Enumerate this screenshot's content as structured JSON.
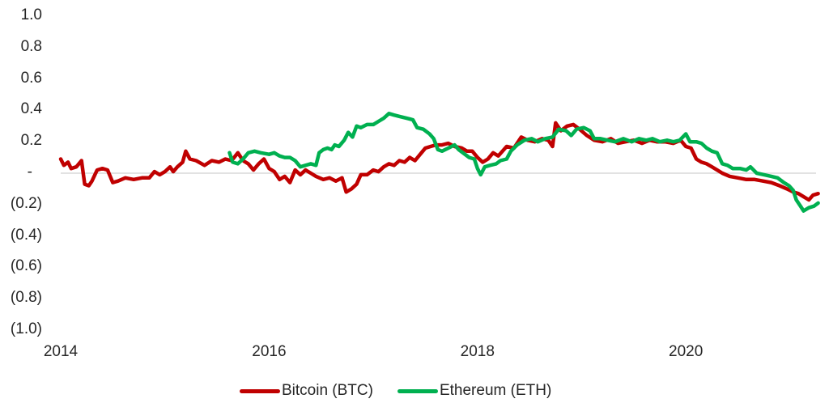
{
  "chart_data": {
    "type": "line",
    "title": "",
    "xlabel": "",
    "ylabel": "",
    "ylim": [
      -1.0,
      1.0
    ],
    "xlim": [
      2014,
      2021.3
    ],
    "grid": false,
    "zero_line": true,
    "legend_position": "bottom",
    "y_ticks": [
      {
        "value": 1.0,
        "label": "1.0"
      },
      {
        "value": 0.8,
        "label": "0.8"
      },
      {
        "value": 0.6,
        "label": "0.6"
      },
      {
        "value": 0.4,
        "label": "0.4"
      },
      {
        "value": 0.2,
        "label": "0.2"
      },
      {
        "value": 0.0,
        "label": "-"
      },
      {
        "value": -0.2,
        "label": "(0.2)"
      },
      {
        "value": -0.4,
        "label": "(0.4)"
      },
      {
        "value": -0.6,
        "label": "(0.6)"
      },
      {
        "value": -0.8,
        "label": "(0.8)"
      },
      {
        "value": -1.0,
        "label": "(1.0)"
      }
    ],
    "x_ticks": [
      {
        "value": 2014,
        "label": "2014"
      },
      {
        "value": 2016,
        "label": "2016"
      },
      {
        "value": 2018,
        "label": "2018"
      },
      {
        "value": 2020,
        "label": "2020"
      }
    ],
    "series": [
      {
        "name": "Bitcoin (BTC)",
        "color": "#c00000",
        "points": [
          [
            2014.0,
            0.09
          ],
          [
            2014.03,
            0.05
          ],
          [
            2014.07,
            0.07
          ],
          [
            2014.1,
            0.03
          ],
          [
            2014.15,
            0.04
          ],
          [
            2014.2,
            0.08
          ],
          [
            2014.23,
            -0.07
          ],
          [
            2014.27,
            -0.08
          ],
          [
            2014.3,
            -0.05
          ],
          [
            2014.35,
            0.02
          ],
          [
            2014.4,
            0.03
          ],
          [
            2014.45,
            0.02
          ],
          [
            2014.5,
            -0.06
          ],
          [
            2014.55,
            -0.05
          ],
          [
            2014.62,
            -0.03
          ],
          [
            2014.7,
            -0.04
          ],
          [
            2014.78,
            -0.03
          ],
          [
            2014.85,
            -0.03
          ],
          [
            2014.9,
            0.01
          ],
          [
            2014.95,
            -0.01
          ],
          [
            2015.0,
            0.01
          ],
          [
            2015.05,
            0.04
          ],
          [
            2015.08,
            0.01
          ],
          [
            2015.12,
            0.04
          ],
          [
            2015.17,
            0.07
          ],
          [
            2015.2,
            0.14
          ],
          [
            2015.24,
            0.09
          ],
          [
            2015.3,
            0.08
          ],
          [
            2015.38,
            0.05
          ],
          [
            2015.45,
            0.08
          ],
          [
            2015.52,
            0.07
          ],
          [
            2015.58,
            0.09
          ],
          [
            2015.64,
            0.08
          ],
          [
            2015.7,
            0.13
          ],
          [
            2015.75,
            0.08
          ],
          [
            2015.8,
            0.06
          ],
          [
            2015.85,
            0.02
          ],
          [
            2015.9,
            0.06
          ],
          [
            2015.95,
            0.09
          ],
          [
            2016.0,
            0.03
          ],
          [
            2016.05,
            0.01
          ],
          [
            2016.1,
            -0.04
          ],
          [
            2016.15,
            -0.02
          ],
          [
            2016.2,
            -0.06
          ],
          [
            2016.25,
            0.02
          ],
          [
            2016.3,
            -0.01
          ],
          [
            2016.35,
            0.02
          ],
          [
            2016.4,
            0.0
          ],
          [
            2016.45,
            -0.02
          ],
          [
            2016.52,
            -0.04
          ],
          [
            2016.58,
            -0.03
          ],
          [
            2016.64,
            -0.05
          ],
          [
            2016.7,
            -0.03
          ],
          [
            2016.74,
            -0.12
          ],
          [
            2016.79,
            -0.1
          ],
          [
            2016.84,
            -0.07
          ],
          [
            2016.88,
            -0.01
          ],
          [
            2016.94,
            -0.01
          ],
          [
            2017.0,
            0.02
          ],
          [
            2017.05,
            0.01
          ],
          [
            2017.1,
            0.04
          ],
          [
            2017.15,
            0.06
          ],
          [
            2017.2,
            0.05
          ],
          [
            2017.25,
            0.08
          ],
          [
            2017.3,
            0.07
          ],
          [
            2017.35,
            0.1
          ],
          [
            2017.4,
            0.08
          ],
          [
            2017.45,
            0.12
          ],
          [
            2017.5,
            0.16
          ],
          [
            2017.55,
            0.17
          ],
          [
            2017.6,
            0.18
          ],
          [
            2017.66,
            0.18
          ],
          [
            2017.72,
            0.19
          ],
          [
            2017.78,
            0.17
          ],
          [
            2017.85,
            0.16
          ],
          [
            2017.9,
            0.14
          ],
          [
            2017.95,
            0.14
          ],
          [
            2018.0,
            0.1
          ],
          [
            2018.05,
            0.07
          ],
          [
            2018.1,
            0.09
          ],
          [
            2018.15,
            0.13
          ],
          [
            2018.2,
            0.11
          ],
          [
            2018.28,
            0.17
          ],
          [
            2018.35,
            0.16
          ],
          [
            2018.42,
            0.23
          ],
          [
            2018.48,
            0.21
          ],
          [
            2018.55,
            0.2
          ],
          [
            2018.62,
            0.22
          ],
          [
            2018.68,
            0.21
          ],
          [
            2018.72,
            0.17
          ],
          [
            2018.75,
            0.32
          ],
          [
            2018.8,
            0.27
          ],
          [
            2018.86,
            0.3
          ],
          [
            2018.92,
            0.31
          ],
          [
            2018.98,
            0.28
          ],
          [
            2019.05,
            0.24
          ],
          [
            2019.12,
            0.21
          ],
          [
            2019.2,
            0.2
          ],
          [
            2019.28,
            0.22
          ],
          [
            2019.35,
            0.19
          ],
          [
            2019.42,
            0.2
          ],
          [
            2019.5,
            0.21
          ],
          [
            2019.58,
            0.19
          ],
          [
            2019.65,
            0.21
          ],
          [
            2019.72,
            0.2
          ],
          [
            2019.8,
            0.2
          ],
          [
            2019.88,
            0.19
          ],
          [
            2019.95,
            0.21
          ],
          [
            2020.0,
            0.17
          ],
          [
            2020.05,
            0.16
          ],
          [
            2020.1,
            0.09
          ],
          [
            2020.15,
            0.07
          ],
          [
            2020.2,
            0.06
          ],
          [
            2020.25,
            0.04
          ],
          [
            2020.3,
            0.02
          ],
          [
            2020.35,
            0.0
          ],
          [
            2020.42,
            -0.02
          ],
          [
            2020.5,
            -0.03
          ],
          [
            2020.58,
            -0.04
          ],
          [
            2020.66,
            -0.04
          ],
          [
            2020.74,
            -0.05
          ],
          [
            2020.82,
            -0.06
          ],
          [
            2020.9,
            -0.08
          ],
          [
            2020.97,
            -0.1
          ],
          [
            2021.03,
            -0.12
          ],
          [
            2021.08,
            -0.13
          ],
          [
            2021.13,
            -0.15
          ],
          [
            2021.18,
            -0.17
          ],
          [
            2021.22,
            -0.14
          ],
          [
            2021.27,
            -0.13
          ]
        ]
      },
      {
        "name": "Ethereum (ETH)",
        "color": "#00b050",
        "points": [
          [
            2015.62,
            0.13
          ],
          [
            2015.65,
            0.07
          ],
          [
            2015.7,
            0.06
          ],
          [
            2015.75,
            0.09
          ],
          [
            2015.8,
            0.13
          ],
          [
            2015.86,
            0.14
          ],
          [
            2015.92,
            0.13
          ],
          [
            2016.0,
            0.12
          ],
          [
            2016.05,
            0.13
          ],
          [
            2016.1,
            0.11
          ],
          [
            2016.15,
            0.1
          ],
          [
            2016.2,
            0.1
          ],
          [
            2016.25,
            0.08
          ],
          [
            2016.3,
            0.04
          ],
          [
            2016.35,
            0.05
          ],
          [
            2016.4,
            0.06
          ],
          [
            2016.45,
            0.05
          ],
          [
            2016.48,
            0.13
          ],
          [
            2016.52,
            0.15
          ],
          [
            2016.56,
            0.16
          ],
          [
            2016.6,
            0.15
          ],
          [
            2016.63,
            0.18
          ],
          [
            2016.67,
            0.17
          ],
          [
            2016.72,
            0.21
          ],
          [
            2016.76,
            0.26
          ],
          [
            2016.8,
            0.23
          ],
          [
            2016.84,
            0.3
          ],
          [
            2016.88,
            0.29
          ],
          [
            2016.94,
            0.31
          ],
          [
            2017.0,
            0.31
          ],
          [
            2017.05,
            0.33
          ],
          [
            2017.1,
            0.35
          ],
          [
            2017.15,
            0.38
          ],
          [
            2017.2,
            0.37
          ],
          [
            2017.26,
            0.36
          ],
          [
            2017.32,
            0.35
          ],
          [
            2017.38,
            0.34
          ],
          [
            2017.42,
            0.29
          ],
          [
            2017.48,
            0.28
          ],
          [
            2017.54,
            0.25
          ],
          [
            2017.58,
            0.22
          ],
          [
            2017.62,
            0.15
          ],
          [
            2017.66,
            0.14
          ],
          [
            2017.72,
            0.16
          ],
          [
            2017.78,
            0.18
          ],
          [
            2017.82,
            0.15
          ],
          [
            2017.86,
            0.13
          ],
          [
            2017.92,
            0.1
          ],
          [
            2017.97,
            0.09
          ],
          [
            2018.0,
            0.03
          ],
          [
            2018.03,
            -0.01
          ],
          [
            2018.07,
            0.04
          ],
          [
            2018.12,
            0.05
          ],
          [
            2018.18,
            0.06
          ],
          [
            2018.22,
            0.08
          ],
          [
            2018.28,
            0.09
          ],
          [
            2018.32,
            0.14
          ],
          [
            2018.38,
            0.18
          ],
          [
            2018.45,
            0.21
          ],
          [
            2018.52,
            0.22
          ],
          [
            2018.58,
            0.2
          ],
          [
            2018.65,
            0.22
          ],
          [
            2018.72,
            0.23
          ],
          [
            2018.78,
            0.28
          ],
          [
            2018.85,
            0.27
          ],
          [
            2018.9,
            0.24
          ],
          [
            2018.95,
            0.28
          ],
          [
            2019.02,
            0.29
          ],
          [
            2019.08,
            0.27
          ],
          [
            2019.12,
            0.22
          ],
          [
            2019.18,
            0.22
          ],
          [
            2019.25,
            0.21
          ],
          [
            2019.32,
            0.2
          ],
          [
            2019.4,
            0.22
          ],
          [
            2019.48,
            0.2
          ],
          [
            2019.55,
            0.22
          ],
          [
            2019.62,
            0.21
          ],
          [
            2019.68,
            0.22
          ],
          [
            2019.75,
            0.2
          ],
          [
            2019.82,
            0.21
          ],
          [
            2019.88,
            0.2
          ],
          [
            2019.94,
            0.21
          ],
          [
            2020.0,
            0.25
          ],
          [
            2020.04,
            0.2
          ],
          [
            2020.1,
            0.2
          ],
          [
            2020.15,
            0.19
          ],
          [
            2020.2,
            0.16
          ],
          [
            2020.25,
            0.14
          ],
          [
            2020.3,
            0.13
          ],
          [
            2020.35,
            0.06
          ],
          [
            2020.4,
            0.05
          ],
          [
            2020.45,
            0.03
          ],
          [
            2020.52,
            0.03
          ],
          [
            2020.58,
            0.02
          ],
          [
            2020.62,
            0.04
          ],
          [
            2020.68,
            0.0
          ],
          [
            2020.75,
            -0.01
          ],
          [
            2020.82,
            -0.02
          ],
          [
            2020.88,
            -0.03
          ],
          [
            2020.94,
            -0.06
          ],
          [
            2020.99,
            -0.08
          ],
          [
            2021.03,
            -0.11
          ],
          [
            2021.06,
            -0.17
          ],
          [
            2021.1,
            -0.21
          ],
          [
            2021.13,
            -0.24
          ],
          [
            2021.18,
            -0.22
          ],
          [
            2021.23,
            -0.21
          ],
          [
            2021.27,
            -0.19
          ]
        ]
      }
    ]
  },
  "legend": {
    "items": [
      {
        "label": "Bitcoin (BTC)",
        "color": "#c00000"
      },
      {
        "label": "Ethereum (ETH)",
        "color": "#00b050"
      }
    ]
  }
}
